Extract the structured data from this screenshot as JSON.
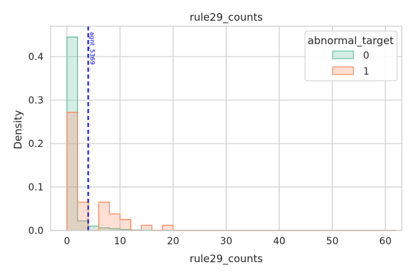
{
  "chart_data": {
    "type": "histogram",
    "title": "rule29_counts",
    "xlabel": "rule29_counts",
    "ylabel": "Density",
    "xlim": [
      -3.1,
      63.1
    ],
    "ylim": [
      0,
      0.47
    ],
    "xticks": [
      0,
      10,
      20,
      30,
      40,
      50,
      60
    ],
    "yticks": [
      0.0,
      0.1,
      0.2,
      0.3,
      0.4
    ],
    "ytick_labels": [
      "0.0",
      "0.1",
      "0.2",
      "0.3",
      "0.4"
    ],
    "grid": true,
    "legend": {
      "title": "abnormal_target",
      "position": "top-right"
    },
    "bin_edges": [
      0,
      2,
      4,
      6,
      8,
      10,
      12,
      14,
      16,
      18,
      20,
      22,
      24,
      26,
      28,
      30,
      32,
      34,
      36,
      38,
      40,
      42,
      44,
      46,
      48,
      50,
      52,
      54,
      56,
      58,
      60,
      62
    ],
    "series": [
      {
        "name": "0",
        "stroke": "#66c2a5",
        "fill": "#66c2a5",
        "fill_opacity": 0.28,
        "values": [
          0.445,
          0.022,
          0.01,
          0.006,
          0.004,
          0.002,
          0.001,
          0,
          0,
          0,
          0,
          0,
          0,
          0,
          0,
          0,
          0,
          0,
          0,
          0,
          0,
          0,
          0,
          0,
          0,
          0,
          0,
          0,
          0,
          0,
          0
        ]
      },
      {
        "name": "1",
        "stroke": "#fc8d62",
        "fill": "#fc8d62",
        "fill_opacity": 0.28,
        "values": [
          0.272,
          0.065,
          0.0,
          0.065,
          0.038,
          0.025,
          0.0,
          0.012,
          0.0,
          0.012,
          0,
          0,
          0,
          0,
          0,
          0,
          0,
          0,
          0,
          0,
          0,
          0,
          0,
          0,
          0,
          0,
          0,
          0,
          0,
          0,
          0
        ]
      }
    ],
    "annotations": [
      {
        "type": "vline",
        "x": 4,
        "color": "#0000ff",
        "style": "dashed",
        "label": "agnt_5369"
      }
    ]
  }
}
